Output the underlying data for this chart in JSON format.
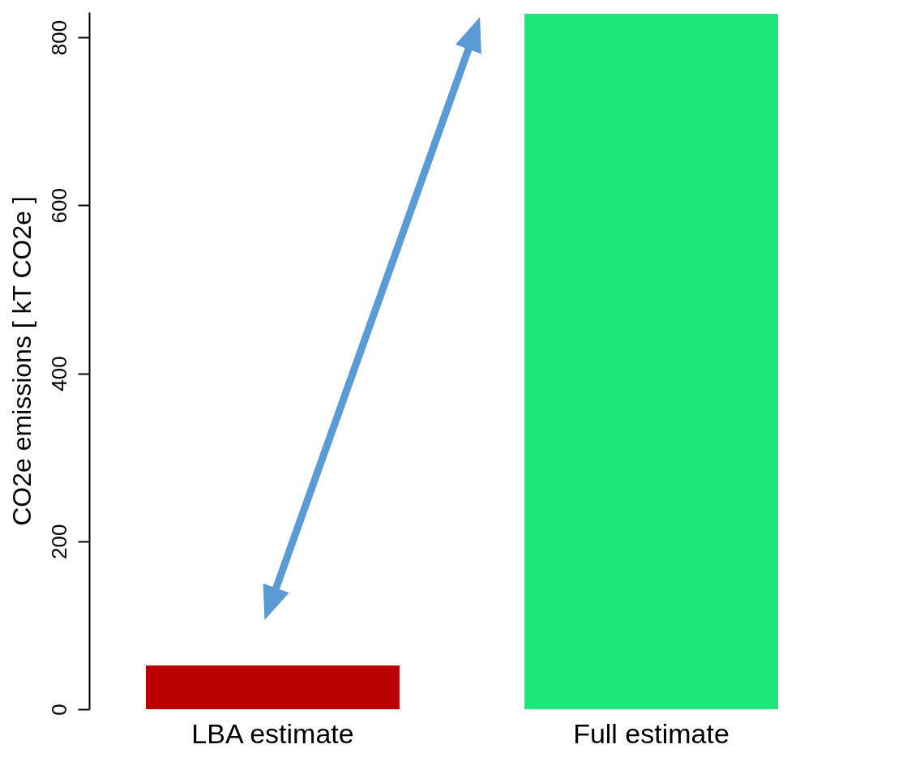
{
  "chart_data": {
    "type": "bar",
    "ylabel": "CO2e emissions  [ kT CO2e ]",
    "categories": [
      "LBA estimate",
      "Full estimate"
    ],
    "values": [
      52,
      828
    ],
    "colors": [
      "#bb0000",
      "#1ee678"
    ],
    "ylim": [
      0,
      830
    ],
    "yticks": [
      0,
      200,
      400,
      600,
      800
    ],
    "grid": false,
    "legend": false
  }
}
